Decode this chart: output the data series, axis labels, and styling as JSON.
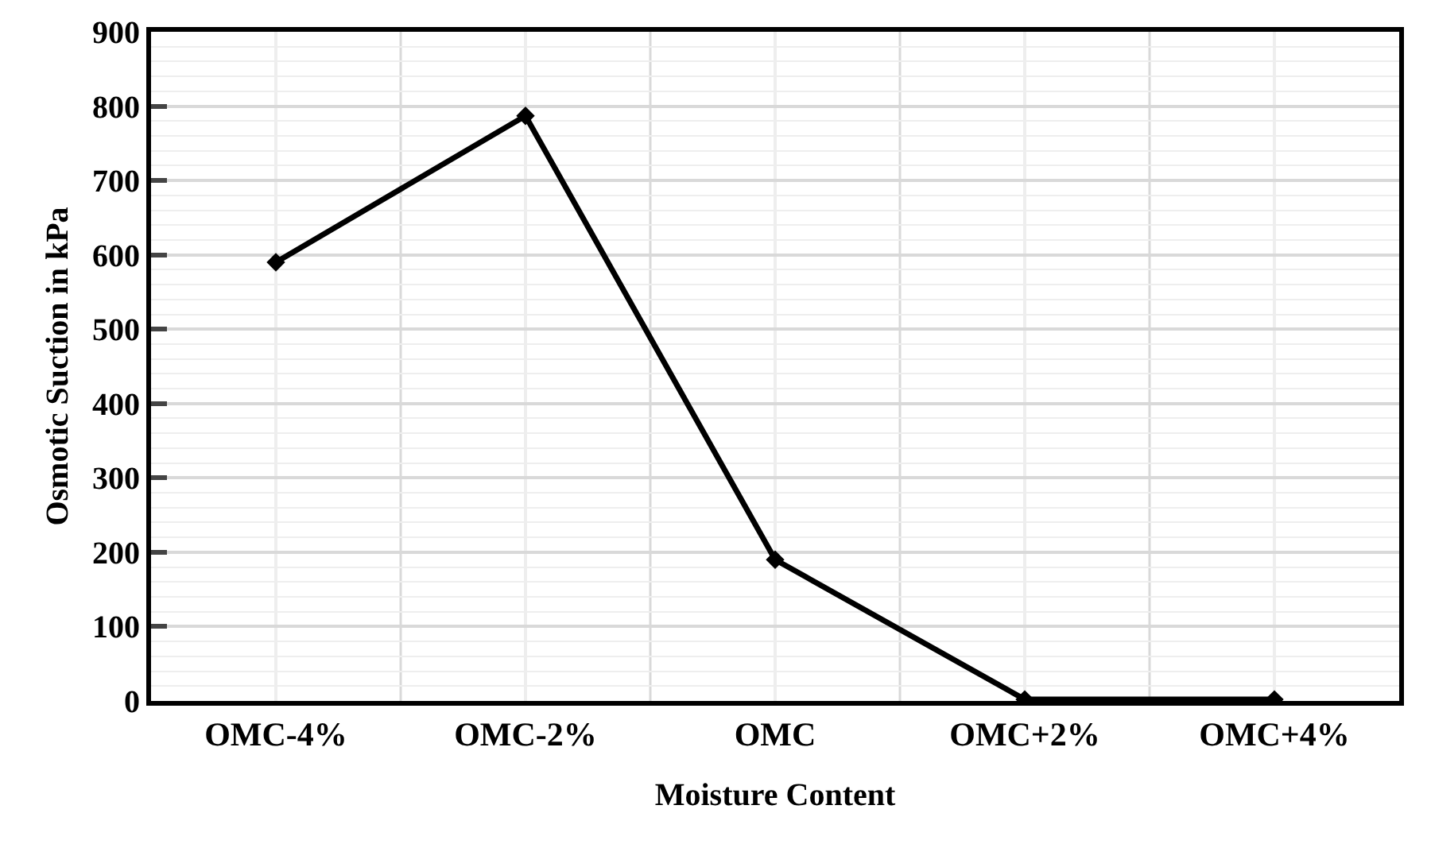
{
  "chart_data": {
    "type": "line",
    "xlabel": "Moisture Content",
    "ylabel": "Osmotic Suction in kPa",
    "categories": [
      "OMC-4%",
      "OMC-2%",
      "OMC",
      "OMC+2%",
      "OMC+4%"
    ],
    "series": [
      {
        "color": "#000000",
        "values": [
          590,
          787,
          190,
          2,
          2
        ]
      }
    ],
    "ylim": [
      0,
      900
    ],
    "yticks": [
      0,
      100,
      200,
      300,
      400,
      500,
      600,
      700,
      800,
      900
    ],
    "grid": true,
    "marker": "diamond",
    "line_style": "solid",
    "legend": false
  }
}
